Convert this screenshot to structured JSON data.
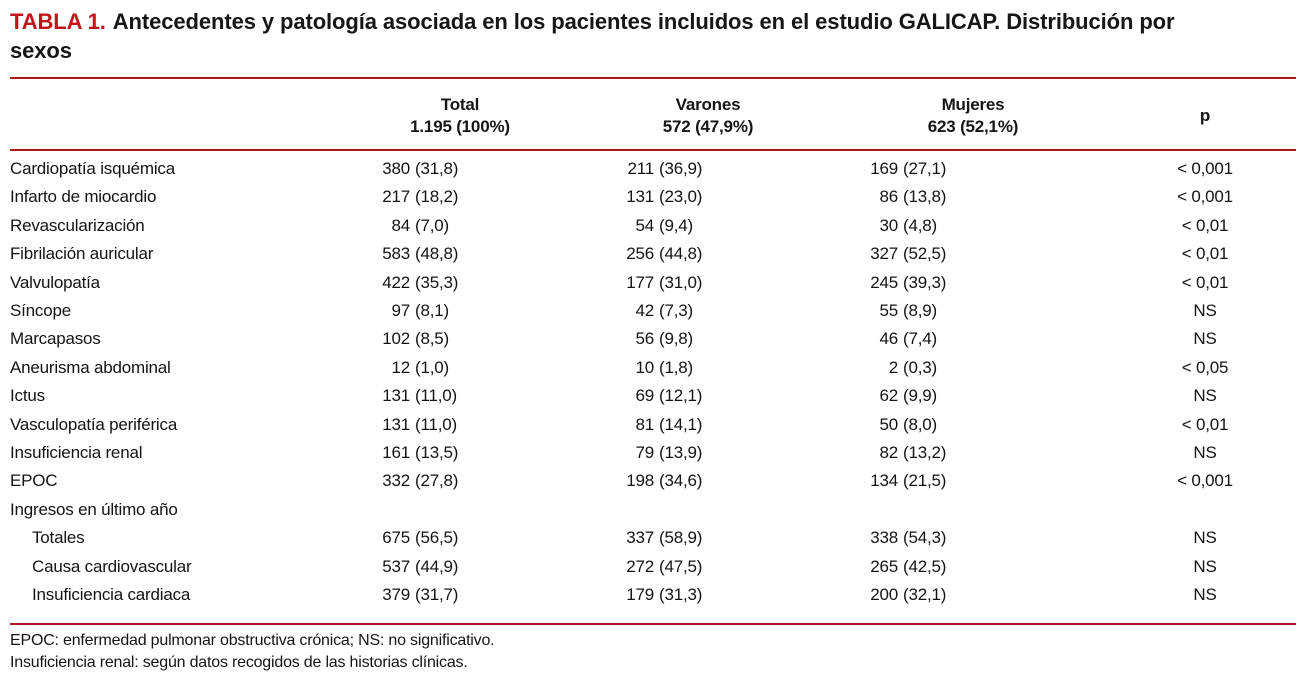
{
  "colors": {
    "accent_red": "#c2151b",
    "rule_red": "#a9161d",
    "text": "#141414",
    "background": "#ffffff"
  },
  "title": {
    "label": "TABLA 1.",
    "line1": "Antecedentes y patología asociada en los pacientes incluidos en el estudio GALICAP. Distribución por",
    "line2": "sexos",
    "full_text": "TABLA 1. Antecedentes y patología asociada en los pacientes incluidos en el estudio GALICAP. Distribución por sexos"
  },
  "table": {
    "columns": [
      {
        "key": "label",
        "header": "",
        "subheader": ""
      },
      {
        "key": "total",
        "header": "Total",
        "subheader": "1.195 (100%)"
      },
      {
        "key": "varones",
        "header": "Varones",
        "subheader": "572 (47,9%)"
      },
      {
        "key": "mujeres",
        "header": "Mujeres",
        "subheader": "623 (52,1%)"
      },
      {
        "key": "p",
        "header": "p",
        "subheader": ""
      }
    ],
    "rows": [
      {
        "label": "Cardiopatía isquémica",
        "indent": 0,
        "total": "380 (31,8)",
        "varones": "211 (36,9)",
        "mujeres": "169 (27,1)",
        "p": "< 0,001"
      },
      {
        "label": "Infarto de miocardio",
        "indent": 0,
        "total": "217 (18,2)",
        "varones": "131 (23,0)",
        "mujeres": "86 (13,8)",
        "p": "< 0,001"
      },
      {
        "label": "Revascularización",
        "indent": 0,
        "total": "84 (7,0)",
        "varones": "54 (9,4)",
        "mujeres": "30 (4,8)",
        "p": "< 0,01"
      },
      {
        "label": "Fibrilación auricular",
        "indent": 0,
        "total": "583 (48,8)",
        "varones": "256 (44,8)",
        "mujeres": "327 (52,5)",
        "p": "< 0,01"
      },
      {
        "label": "Valvulopatía",
        "indent": 0,
        "total": "422 (35,3)",
        "varones": "177 (31,0)",
        "mujeres": "245 (39,3)",
        "p": "< 0,01"
      },
      {
        "label": "Síncope",
        "indent": 0,
        "total": "97 (8,1)",
        "varones": "42 (7,3)",
        "mujeres": "55 (8,9)",
        "p": "NS"
      },
      {
        "label": "Marcapasos",
        "indent": 0,
        "total": "102 (8,5)",
        "varones": "56 (9,8)",
        "mujeres": "46 (7,4)",
        "p": "NS"
      },
      {
        "label": "Aneurisma abdominal",
        "indent": 0,
        "total": "12 (1,0)",
        "varones": "10 (1,8)",
        "mujeres": "2 (0,3)",
        "p": "< 0,05"
      },
      {
        "label": "Ictus",
        "indent": 0,
        "total": "131 (11,0)",
        "varones": "69 (12,1)",
        "mujeres": "62 (9,9)",
        "p": "NS"
      },
      {
        "label": "Vasculopatía periférica",
        "indent": 0,
        "total": "131 (11,0)",
        "varones": "81 (14,1)",
        "mujeres": "50 (8,0)",
        "p": "< 0,01"
      },
      {
        "label": "Insuficiencia renal",
        "indent": 0,
        "total": "161 (13,5)",
        "varones": "79 (13,9)",
        "mujeres": "82 (13,2)",
        "p": "NS"
      },
      {
        "label": "EPOC",
        "indent": 0,
        "total": "332 (27,8)",
        "varones": "198 (34,6)",
        "mujeres": "134 (21,5)",
        "p": "< 0,001"
      },
      {
        "label": "Ingresos en último año",
        "indent": 0,
        "total": "",
        "varones": "",
        "mujeres": "",
        "p": ""
      },
      {
        "label": "Totales",
        "indent": 1,
        "total": "675 (56,5)",
        "varones": "337 (58,9)",
        "mujeres": "338 (54,3)",
        "p": "NS"
      },
      {
        "label": "Causa cardiovascular",
        "indent": 1,
        "total": "537 (44,9)",
        "varones": "272 (47,5)",
        "mujeres": "265 (42,5)",
        "p": "NS"
      },
      {
        "label": "Insuficiencia cardiaca",
        "indent": 1,
        "total": "379 (31,7)",
        "varones": "179 (31,3)",
        "mujeres": "200 (32,1)",
        "p": "NS"
      }
    ]
  },
  "footnotes": [
    "EPOC: enfermedad pulmonar obstructiva crónica; NS: no significativo.",
    "Insuficiencia renal: según datos recogidos de las historias clínicas."
  ]
}
